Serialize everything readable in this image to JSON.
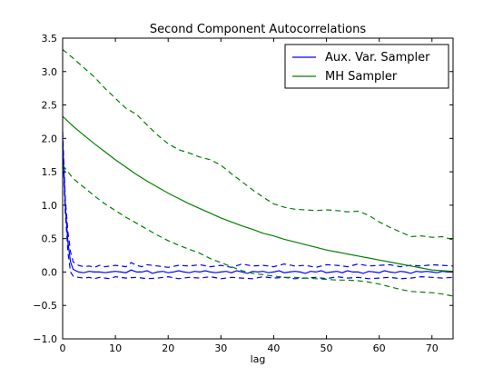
{
  "chart_data": {
    "type": "line",
    "title": "Second Component Autocorrelations",
    "xlabel": "lag",
    "ylabel": "",
    "xlim": [
      0,
      74
    ],
    "ylim": [
      -1.0,
      3.5
    ],
    "xticks": [
      0,
      10,
      20,
      30,
      40,
      50,
      60,
      70
    ],
    "yticks": [
      -1.0,
      -0.5,
      0.0,
      0.5,
      1.0,
      1.5,
      2.0,
      2.5,
      3.0,
      3.5
    ],
    "xtick_labels": [
      "0",
      "10",
      "20",
      "30",
      "40",
      "50",
      "60",
      "70"
    ],
    "ytick_labels": [
      "−1.0",
      "−0.5",
      "0.0",
      "0.5",
      "1.0",
      "1.5",
      "2.0",
      "2.5",
      "3.0",
      "3.5"
    ],
    "grid": false,
    "legend_position": "top-right",
    "series": [
      {
        "name": "Aux. Var. Sampler",
        "color": "#0000ff",
        "style": "solid",
        "x": [
          0,
          0.5,
          1,
          1.5,
          2,
          3,
          4,
          5,
          6,
          7,
          8,
          9,
          10,
          11,
          12,
          13,
          14,
          15,
          16,
          17,
          18,
          19,
          20,
          21,
          22,
          23,
          24,
          25,
          26,
          27,
          28,
          29,
          30,
          31,
          32,
          33,
          34,
          35,
          36,
          37,
          38,
          39,
          40,
          41,
          42,
          43,
          44,
          45,
          46,
          47,
          48,
          49,
          50,
          51,
          52,
          53,
          54,
          55,
          56,
          57,
          58,
          59,
          60,
          61,
          62,
          63,
          64,
          65,
          66,
          67,
          68,
          69,
          70,
          71,
          72,
          73,
          74
        ],
        "y": [
          2.0,
          1.0,
          0.45,
          0.15,
          0.04,
          0.0,
          -0.01,
          0.01,
          0.0,
          0.0,
          -0.01,
          0.0,
          0.01,
          0.0,
          -0.01,
          0.03,
          0.0,
          0.0,
          0.02,
          -0.02,
          0.0,
          0.01,
          -0.01,
          0.0,
          0.02,
          0.0,
          -0.01,
          0.01,
          0.0,
          0.02,
          0.0,
          -0.01,
          0.0,
          0.01,
          -0.01,
          0.02,
          0.0,
          -0.02,
          0.01,
          0.0,
          0.01,
          -0.01,
          0.0,
          0.02,
          -0.01,
          0.0,
          0.01,
          0.0,
          -0.02,
          0.01,
          0.0,
          0.02,
          -0.01,
          0.0,
          0.01,
          -0.01,
          0.02,
          0.0,
          0.0,
          -0.02,
          0.01,
          0.0,
          -0.01,
          0.02,
          0.0,
          -0.01,
          0.01,
          0.0,
          -0.02,
          0.01,
          0.0,
          0.01,
          0.0,
          -0.01,
          0.01,
          0.0,
          0.0
        ]
      },
      {
        "name": "",
        "color": "#0000ff",
        "style": "dashed",
        "x": [
          0,
          0.5,
          1,
          1.5,
          2,
          3,
          4,
          5,
          6,
          7,
          8,
          9,
          10,
          12,
          13,
          14,
          15,
          16,
          18,
          20,
          22,
          24,
          26,
          28,
          30,
          32,
          34,
          36,
          38,
          40,
          42,
          44,
          46,
          48,
          50,
          52,
          54,
          56,
          58,
          60,
          62,
          64,
          66,
          68,
          70,
          72,
          74
        ],
        "y": [
          2.1,
          1.1,
          0.6,
          0.3,
          0.15,
          0.1,
          0.08,
          0.09,
          0.07,
          0.1,
          0.08,
          0.09,
          0.1,
          0.08,
          0.14,
          0.1,
          0.08,
          0.11,
          0.09,
          0.07,
          0.1,
          0.09,
          0.11,
          0.08,
          0.1,
          0.07,
          0.12,
          0.09,
          0.1,
          0.08,
          0.12,
          0.09,
          0.1,
          0.07,
          0.11,
          0.1,
          0.08,
          0.12,
          0.09,
          0.1,
          0.11,
          0.08,
          0.1,
          0.09,
          0.11,
          0.1,
          0.09
        ]
      },
      {
        "name": "",
        "color": "#0000ff",
        "style": "dashed",
        "x": [
          0,
          0.5,
          1,
          1.5,
          2,
          3,
          4,
          5,
          6,
          7,
          8,
          9,
          10,
          12,
          14,
          16,
          18,
          20,
          22,
          24,
          26,
          28,
          30,
          32,
          34,
          36,
          38,
          40,
          42,
          44,
          46,
          48,
          50,
          52,
          54,
          56,
          58,
          60,
          62,
          64,
          66,
          68,
          70,
          72,
          74
        ],
        "y": [
          1.9,
          0.9,
          0.3,
          0.0,
          -0.06,
          -0.08,
          -0.09,
          -0.08,
          -0.1,
          -0.08,
          -0.09,
          -0.1,
          -0.07,
          -0.09,
          -0.08,
          -0.1,
          -0.09,
          -0.07,
          -0.1,
          -0.08,
          -0.09,
          -0.07,
          -0.1,
          -0.08,
          -0.09,
          -0.1,
          -0.07,
          -0.09,
          -0.08,
          -0.1,
          -0.09,
          -0.08,
          -0.1,
          -0.07,
          -0.09,
          -0.08,
          -0.1,
          -0.09,
          -0.08,
          -0.1,
          -0.09,
          -0.07,
          -0.08,
          -0.09,
          -0.08
        ]
      },
      {
        "name": "MH Sampler",
        "color": "#008000",
        "style": "solid",
        "x": [
          0,
          2,
          4,
          6,
          8,
          10,
          12,
          14,
          16,
          18,
          20,
          22,
          24,
          26,
          28,
          30,
          32,
          34,
          36,
          38,
          40,
          42,
          44,
          46,
          48,
          50,
          52,
          54,
          56,
          58,
          60,
          62,
          64,
          66,
          68,
          70,
          72,
          74
        ],
        "y": [
          2.33,
          2.18,
          2.05,
          1.92,
          1.8,
          1.68,
          1.57,
          1.46,
          1.36,
          1.27,
          1.18,
          1.1,
          1.02,
          0.95,
          0.88,
          0.81,
          0.75,
          0.69,
          0.64,
          0.58,
          0.54,
          0.49,
          0.45,
          0.41,
          0.37,
          0.33,
          0.3,
          0.27,
          0.24,
          0.21,
          0.18,
          0.15,
          0.12,
          0.09,
          0.06,
          0.03,
          0.02,
          0.01
        ]
      },
      {
        "name": "",
        "color": "#008000",
        "style": "dashed",
        "x": [
          0,
          2,
          4,
          6,
          8,
          10,
          12,
          14,
          16,
          18,
          20,
          22,
          24,
          26,
          28,
          30,
          32,
          34,
          36,
          38,
          40,
          42,
          44,
          46,
          48,
          50,
          52,
          54,
          56,
          58,
          60,
          62,
          64,
          66,
          68,
          70,
          72,
          74
        ],
        "y": [
          3.33,
          3.2,
          3.06,
          2.92,
          2.75,
          2.6,
          2.45,
          2.36,
          2.2,
          2.05,
          1.92,
          1.83,
          1.78,
          1.72,
          1.68,
          1.6,
          1.47,
          1.35,
          1.23,
          1.12,
          1.02,
          0.97,
          0.94,
          0.93,
          0.92,
          0.93,
          0.92,
          0.9,
          0.91,
          0.85,
          0.75,
          0.67,
          0.6,
          0.53,
          0.54,
          0.52,
          0.53,
          0.48
        ]
      },
      {
        "name": "",
        "color": "#008000",
        "style": "dashed",
        "x": [
          0,
          2,
          4,
          6,
          8,
          10,
          12,
          14,
          16,
          18,
          20,
          22,
          24,
          26,
          28,
          30,
          32,
          34,
          36,
          38,
          40,
          42,
          44,
          46,
          48,
          50,
          52,
          54,
          56,
          58,
          60,
          62,
          64,
          66,
          68,
          70,
          72,
          74
        ],
        "y": [
          1.6,
          1.4,
          1.27,
          1.14,
          1.02,
          0.92,
          0.82,
          0.73,
          0.64,
          0.55,
          0.47,
          0.4,
          0.34,
          0.28,
          0.2,
          0.14,
          0.08,
          0.02,
          -0.02,
          -0.04,
          -0.06,
          -0.08,
          -0.08,
          -0.09,
          -0.1,
          -0.11,
          -0.12,
          -0.12,
          -0.13,
          -0.15,
          -0.18,
          -0.22,
          -0.26,
          -0.29,
          -0.3,
          -0.31,
          -0.33,
          -0.36
        ]
      }
    ]
  }
}
